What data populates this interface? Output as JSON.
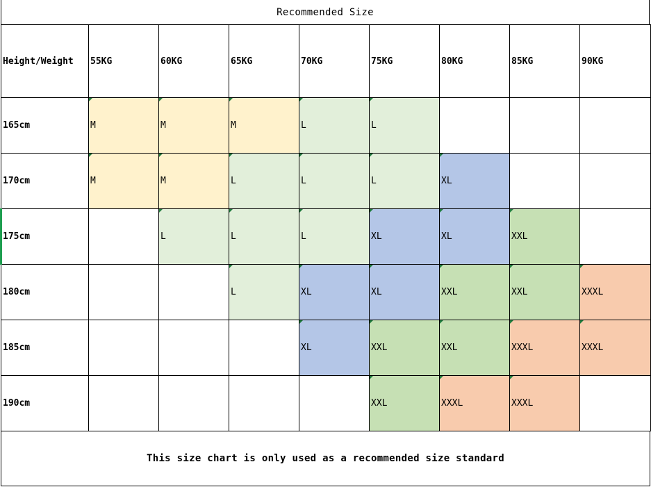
{
  "title": "Recommended Size",
  "header": {
    "corner": "Height/Weight",
    "weights": [
      "55KG",
      "60KG",
      "65KG",
      "70KG",
      "75KG",
      "80KG",
      "85KG",
      "90KG"
    ]
  },
  "rows": [
    {
      "height": "165cm",
      "sizes": [
        "M",
        "M",
        "M",
        "L",
        "L",
        "",
        "",
        ""
      ]
    },
    {
      "height": "170cm",
      "sizes": [
        "M",
        "M",
        "L",
        "L",
        "L",
        "XL",
        "",
        ""
      ]
    },
    {
      "height": "175cm",
      "sizes": [
        "",
        "L",
        "L",
        "L",
        "XL",
        "XL",
        "XXL",
        ""
      ]
    },
    {
      "height": "180cm",
      "sizes": [
        "",
        "",
        "L",
        "XL",
        "XL",
        "XXL",
        "XXL",
        "XXXL"
      ]
    },
    {
      "height": "185cm",
      "sizes": [
        "",
        "",
        "",
        "XL",
        "XXL",
        "XXL",
        "XXXL",
        "XXXL"
      ]
    },
    {
      "height": "190cm",
      "sizes": [
        "",
        "",
        "",
        "",
        "XXL",
        "XXXL",
        "XXXL",
        ""
      ]
    }
  ],
  "size_colors": {
    "M": "#fff2cc",
    "L": "#e2efda",
    "XL": "#b4c6e7",
    "XXL": "#c6e0b4",
    "XXXL": "#f8cbad"
  },
  "footer": "This size chart is only used as a recommended size standard"
}
